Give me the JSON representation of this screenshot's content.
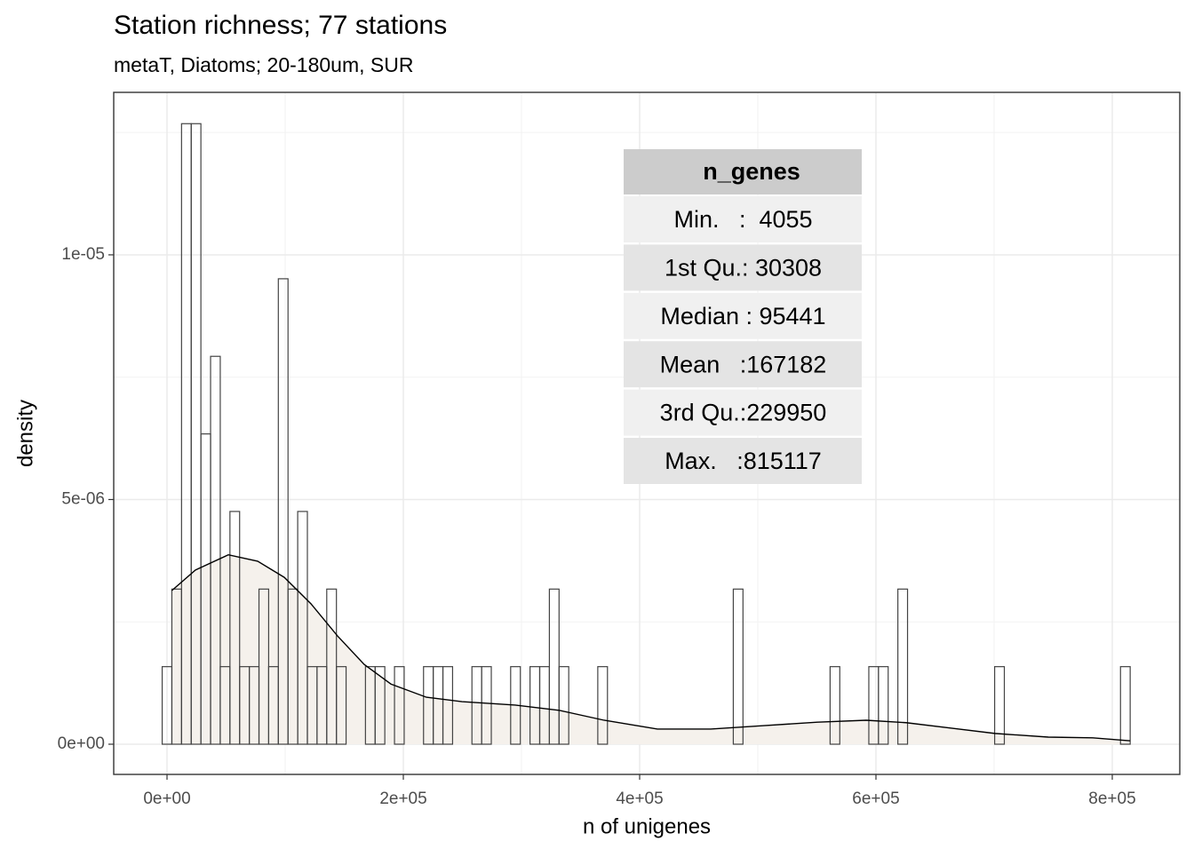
{
  "chart_data": {
    "type": "histogram",
    "title": "Station richness; 77 stations",
    "subtitle": "metaT, Diatoms; 20-180um, SUR",
    "x_label": "n of unigenes",
    "y_label": "density",
    "bins": [
      -4096,
      4096,
      12289,
      20481,
      28674,
      36866,
      45059,
      53252,
      61444,
      69637,
      77829,
      86022,
      94214,
      102407,
      110599,
      118792,
      126984,
      135177,
      143369,
      151562,
      159754,
      167947,
      176140,
      184332,
      192525,
      200717,
      208910,
      217102,
      225295,
      233487,
      241680,
      249873,
      258065,
      266258,
      274450,
      282643,
      290835,
      299028,
      307220,
      315413,
      323605,
      331798,
      339990,
      348183,
      356375,
      364568,
      372761,
      380953,
      389146,
      397338,
      405531,
      413723,
      421916,
      430108,
      438301,
      446493,
      454686,
      462878,
      471071,
      479264,
      487456,
      495649,
      503841,
      512034,
      520226,
      528419,
      536611,
      544804,
      552996,
      561189,
      569382,
      577574,
      585767,
      593959,
      602152,
      610344,
      618537,
      626729,
      634922,
      643114,
      651307,
      659499,
      667692,
      675885,
      684077,
      692270,
      700462,
      708655,
      716847,
      725040,
      733232,
      741425,
      749617,
      757810,
      766003,
      774195,
      782388,
      790580,
      798773,
      806965,
      815158
    ],
    "values": [
      1.585e-06,
      3.17e-06,
      1.268e-05,
      1.268e-05,
      6.341e-06,
      7.926e-06,
      1.585e-06,
      4.756e-06,
      1.585e-06,
      1.585e-06,
      3.17e-06,
      1.585e-06,
      9.511e-06,
      3.17e-06,
      4.756e-06,
      1.585e-06,
      1.585e-06,
      3.17e-06,
      1.585e-06,
      0,
      0,
      1.585e-06,
      1.585e-06,
      0,
      1.585e-06,
      0,
      0,
      1.585e-06,
      1.585e-06,
      1.585e-06,
      0,
      0,
      1.585e-06,
      1.585e-06,
      0,
      0,
      1.585e-06,
      0,
      1.585e-06,
      1.585e-06,
      3.17e-06,
      1.585e-06,
      0,
      0,
      0,
      1.585e-06,
      0,
      0,
      0,
      0,
      0,
      0,
      0,
      0,
      0,
      0,
      0,
      0,
      0,
      3.17e-06,
      0,
      0,
      0,
      0,
      0,
      0,
      0,
      0,
      0,
      1.585e-06,
      0,
      0,
      0,
      1.585e-06,
      1.585e-06,
      0,
      3.17e-06,
      0,
      0,
      0,
      0,
      0,
      0,
      0,
      0,
      0,
      1.585e-06,
      0,
      0,
      0,
      0,
      0,
      0,
      0,
      0,
      0,
      0,
      0,
      0,
      1.585e-06
    ],
    "color": "#444444",
    "density": {
      "x": [
        4055,
        24060,
        51880,
        76690,
        99250,
        121800,
        144360,
        166920,
        189470,
        219550,
        249620,
        294740,
        332330,
        369920,
        415040,
        460150,
        505260,
        550380,
        591730,
        625560,
        663160,
        700750,
        745860,
        783460,
        815117
      ],
      "values": [
        3.14e-06,
        3.56e-06,
        3.87e-06,
        3.74e-06,
        3.41e-06,
        2.87e-06,
        2.21e-06,
        1.63e-06,
        1.23e-06,
        9.6e-07,
        8.7e-07,
        8e-07,
        6.9e-07,
        4.9e-07,
        3.1e-07,
        3.1e-07,
        3.8e-07,
        4.5e-07,
        4.9e-07,
        4.4e-07,
        3.3e-07,
        2.2e-07,
        1.45e-07,
        1.3e-07,
        7e-08
      ],
      "color": "#000000",
      "fill": "#f5f1ec"
    },
    "xlim": [
      -45113,
      857143
    ],
    "ylim": [
      -6.17e-07,
      1.332e-05
    ],
    "xticks": [
      {
        "value": 0,
        "label": "0e+00"
      },
      {
        "value": 200000,
        "label": "2e+05"
      },
      {
        "value": 400000,
        "label": "4e+05"
      },
      {
        "value": 600000,
        "label": "6e+05"
      },
      {
        "value": 800000,
        "label": "8e+05"
      }
    ],
    "yticks": [
      {
        "value": 0,
        "label": "0e+00"
      },
      {
        "value": 5e-06,
        "label": "5e-06"
      },
      {
        "value": 1e-05,
        "label": "1e-05"
      }
    ],
    "grid": true,
    "summary_table": {
      "header": "n_genes",
      "rows": [
        "Min.   :  4055  ",
        "1st Qu.: 30308  ",
        "Median : 95441  ",
        "Mean   :167182  ",
        "3rd Qu.:229950  ",
        "Max.   :815117  "
      ]
    }
  }
}
